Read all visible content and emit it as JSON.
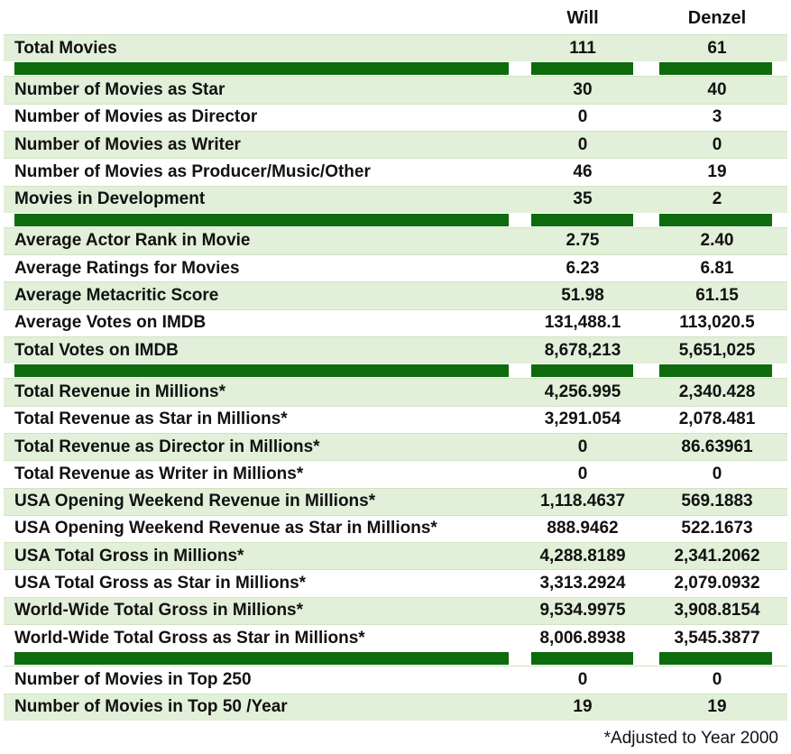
{
  "header": {
    "col_will": "Will",
    "col_denzel": "Denzel"
  },
  "sections": [
    {
      "rows": [
        {
          "label": "Total Movies",
          "will": "111",
          "denzel": "61",
          "shade": true
        }
      ]
    },
    {
      "rows": [
        {
          "label": "Number of Movies as Star",
          "will": "30",
          "denzel": "40",
          "shade": true
        },
        {
          "label": "Number of Movies as Director",
          "will": "0",
          "denzel": "3",
          "shade": false
        },
        {
          "label": "Number of Movies as Writer",
          "will": "0",
          "denzel": "0",
          "shade": true
        },
        {
          "label": "Number of Movies as Producer/Music/Other",
          "will": "46",
          "denzel": "19",
          "shade": false
        },
        {
          "label": "Movies in Development",
          "will": "35",
          "denzel": "2",
          "shade": true
        }
      ]
    },
    {
      "rows": [
        {
          "label": "Average Actor Rank in Movie",
          "will": "2.75",
          "denzel": "2.40",
          "shade": true
        },
        {
          "label": "Average Ratings for Movies",
          "will": "6.23",
          "denzel": "6.81",
          "shade": false
        },
        {
          "label": "Average Metacritic Score",
          "will": "51.98",
          "denzel": "61.15",
          "shade": true
        },
        {
          "label": "Average Votes on IMDB",
          "will": "131,488.1",
          "denzel": "113,020.5",
          "shade": false
        },
        {
          "label": "Total Votes on IMDB",
          "will": "8,678,213",
          "denzel": "5,651,025",
          "shade": true
        }
      ]
    },
    {
      "rows": [
        {
          "label": "Total Revenue in Millions*",
          "will": "4,256.995",
          "denzel": "2,340.428",
          "shade": true
        },
        {
          "label": "Total Revenue as Star in Millions*",
          "will": "3,291.054",
          "denzel": "2,078.481",
          "shade": false
        },
        {
          "label": "Total Revenue as Director in Millions*",
          "will": "0",
          "denzel": "86.63961",
          "shade": true
        },
        {
          "label": "Total Revenue as Writer in Millions*",
          "will": "0",
          "denzel": "0",
          "shade": false
        },
        {
          "label": "USA Opening Weekend Revenue in Millions*",
          "will": "1,118.4637",
          "denzel": "569.1883",
          "shade": true
        },
        {
          "label": "USA Opening Weekend Revenue as Star in Millions*",
          "will": "888.9462",
          "denzel": "522.1673",
          "shade": false
        },
        {
          "label": "USA Total Gross in Millions*",
          "will": "4,288.8189",
          "denzel": "2,341.2062",
          "shade": true
        },
        {
          "label": "USA Total Gross as Star in Millions*",
          "will": "3,313.2924",
          "denzel": "2,079.0932",
          "shade": false
        },
        {
          "label": "World-Wide Total Gross in Millions*",
          "will": "9,534.9975",
          "denzel": "3,908.8154",
          "shade": true
        },
        {
          "label": "World-Wide Total Gross as Star in Millions*",
          "will": "8,006.8938",
          "denzel": "3,545.3877",
          "shade": false
        }
      ]
    },
    {
      "rows": [
        {
          "label": "Number of Movies in Top 250",
          "will": "0",
          "denzel": "0",
          "shade": false
        },
        {
          "label": "Number of Movies in Top 50 /Year",
          "will": "19",
          "denzel": "19",
          "shade": true
        }
      ]
    }
  ],
  "footnote": "*Adjusted to Year 2000",
  "colors": {
    "shade": "#e2efd9",
    "separator": "#0e6b0e",
    "border": "#cfe3c2"
  }
}
